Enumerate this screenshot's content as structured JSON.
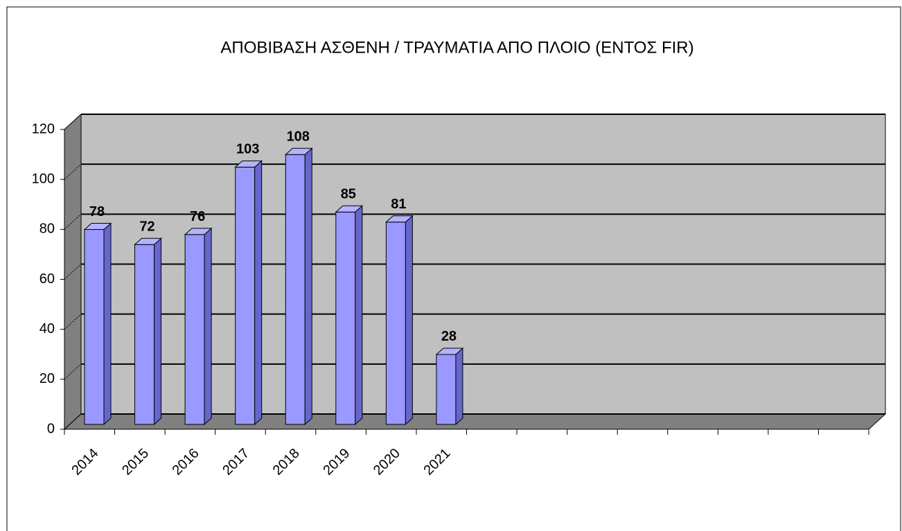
{
  "chart_data": {
    "type": "bar",
    "title": "ΑΠΟΒΙΒΑΣΗ ΑΣΘΕΝΗ / ΤΡΑΥΜΑΤΙΑ ΑΠΟ ΠΛΟΙΟ (ΕΝΤΟΣ FIR)",
    "categories": [
      "2014",
      "2015",
      "2016",
      "2017",
      "2018",
      "2019",
      "2020",
      "2021",
      null,
      null,
      null,
      null,
      null,
      null,
      null,
      null
    ],
    "values": [
      78,
      72,
      76,
      103,
      108,
      85,
      81,
      28,
      null,
      null,
      null,
      null,
      null,
      null,
      null,
      null
    ],
    "color": "#9999ff",
    "ylim": [
      0,
      120
    ],
    "yticks": [
      0,
      20,
      40,
      60,
      80,
      100,
      120
    ],
    "grid": true
  }
}
